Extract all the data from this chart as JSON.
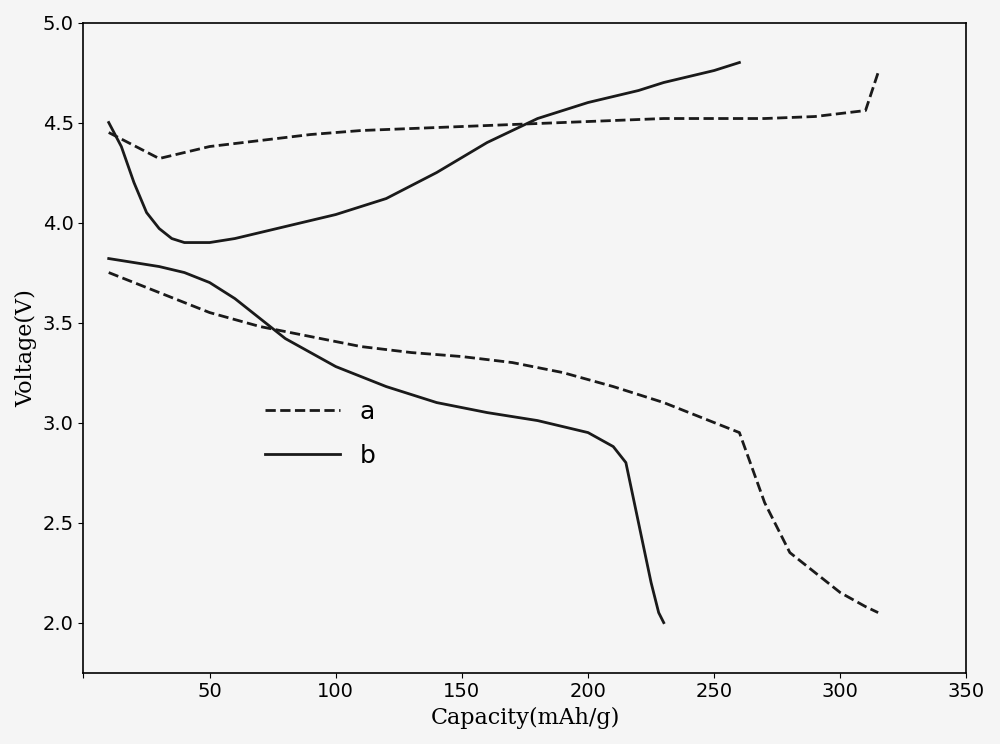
{
  "title": "",
  "xlabel": "Capacity(mAh/g)",
  "ylabel": "Voltage(V)",
  "xlim": [
    0,
    350
  ],
  "ylim": [
    1.75,
    5.0
  ],
  "xticks": [
    0,
    50,
    100,
    150,
    200,
    250,
    300,
    350
  ],
  "yticks": [
    2.0,
    2.5,
    3.0,
    3.5,
    4.0,
    4.5,
    5.0
  ],
  "background": "#f0f0f0",
  "curve_a_charge_x": [
    10,
    30,
    50,
    70,
    90,
    110,
    130,
    150,
    170,
    190,
    210,
    230,
    250,
    270,
    290,
    310,
    315
  ],
  "curve_a_charge_y": [
    4.45,
    4.32,
    4.38,
    4.41,
    4.44,
    4.46,
    4.47,
    4.48,
    4.49,
    4.5,
    4.51,
    4.52,
    4.52,
    4.52,
    4.53,
    4.56,
    4.75
  ],
  "curve_a_discharge_x": [
    10,
    30,
    50,
    70,
    90,
    110,
    130,
    150,
    170,
    190,
    210,
    230,
    250,
    260,
    270,
    280,
    290,
    300,
    310,
    315
  ],
  "curve_a_discharge_y": [
    3.75,
    3.65,
    3.55,
    3.48,
    3.43,
    3.38,
    3.35,
    3.33,
    3.3,
    3.25,
    3.18,
    3.1,
    3.0,
    2.95,
    2.6,
    2.35,
    2.25,
    2.15,
    2.08,
    2.05
  ],
  "curve_b_charge_x": [
    10,
    15,
    20,
    25,
    30,
    35,
    40,
    50,
    60,
    70,
    80,
    100,
    120,
    140,
    160,
    180,
    200,
    210,
    220,
    230,
    240,
    250,
    255,
    260
  ],
  "curve_b_charge_y": [
    4.5,
    4.38,
    4.2,
    4.05,
    3.97,
    3.92,
    3.9,
    3.9,
    3.92,
    3.95,
    3.98,
    4.04,
    4.12,
    4.25,
    4.4,
    4.52,
    4.6,
    4.63,
    4.66,
    4.7,
    4.73,
    4.76,
    4.78,
    4.8
  ],
  "curve_b_discharge_x": [
    10,
    20,
    30,
    40,
    50,
    60,
    70,
    80,
    100,
    120,
    140,
    160,
    180,
    200,
    210,
    215,
    220,
    225,
    228,
    230
  ],
  "curve_b_discharge_y": [
    3.82,
    3.8,
    3.78,
    3.75,
    3.7,
    3.62,
    3.52,
    3.42,
    3.28,
    3.18,
    3.1,
    3.05,
    3.01,
    2.95,
    2.88,
    2.8,
    2.5,
    2.2,
    2.05,
    2.0
  ],
  "line_color": "#1a1a1a",
  "line_width": 2.0,
  "legend_fontsize": 18,
  "axis_fontsize": 16,
  "tick_fontsize": 14
}
